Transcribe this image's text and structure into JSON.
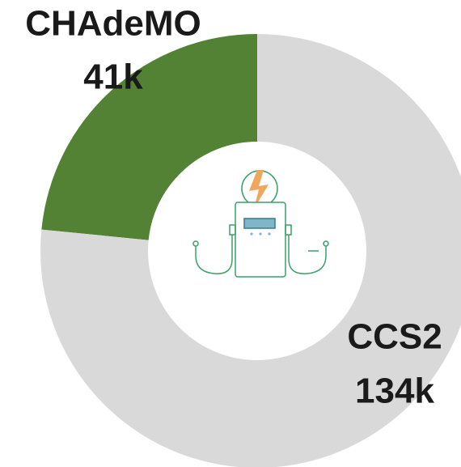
{
  "chart_data": {
    "type": "donut",
    "categories": [
      "CHAdeMO",
      "CCS2"
    ],
    "values": [
      41000,
      134000
    ],
    "value_labels": [
      "41k",
      "134k"
    ],
    "colors": [
      "#548235",
      "#d9d9d9"
    ]
  }
}
